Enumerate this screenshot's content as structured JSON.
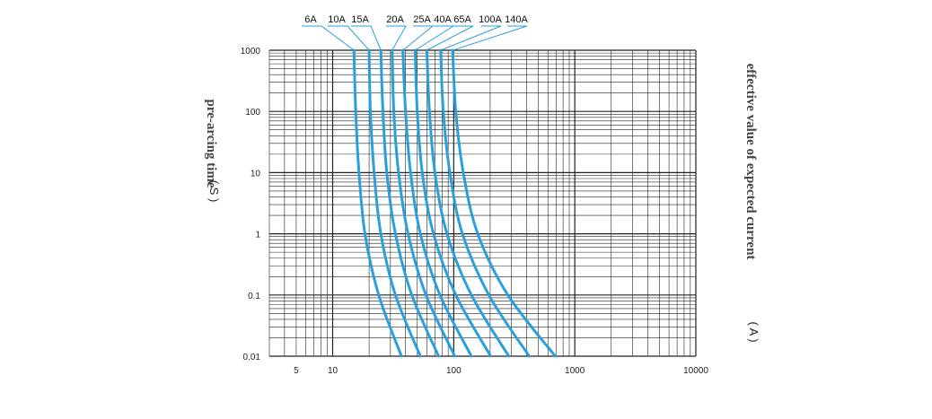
{
  "chart_data": {
    "type": "line",
    "title": "",
    "ylabel": "pre-arcing time",
    "ylabel_unit": "( S )",
    "xlabel": "effective value of expected current",
    "xlabel_unit": "( A )",
    "x_scale": "log",
    "y_scale": "log",
    "xlim": [
      3,
      10000
    ],
    "ylim": [
      0.01,
      1000
    ],
    "x_ticks": [
      "5",
      "10",
      "100",
      "1000",
      "10000"
    ],
    "y_ticks": [
      "1000",
      "100",
      "10",
      "1",
      "0.1",
      "0.01"
    ],
    "grid": true,
    "series": [
      {
        "name": "6A",
        "points": [
          [
            15,
            1000
          ],
          [
            15.5,
            100
          ],
          [
            16.5,
            10
          ],
          [
            18.5,
            1
          ],
          [
            24,
            0.1
          ],
          [
            37,
            0.01
          ]
        ]
      },
      {
        "name": "10A",
        "points": [
          [
            20,
            1000
          ],
          [
            20.5,
            100
          ],
          [
            22,
            10
          ],
          [
            25,
            1
          ],
          [
            33,
            0.1
          ],
          [
            53,
            0.01
          ]
        ]
      },
      {
        "name": "15A",
        "points": [
          [
            25,
            1000
          ],
          [
            26,
            100
          ],
          [
            28,
            10
          ],
          [
            33,
            1
          ],
          [
            45,
            0.1
          ],
          [
            75,
            0.01
          ]
        ]
      },
      {
        "name": "20A",
        "points": [
          [
            31,
            1000
          ],
          [
            32,
            100
          ],
          [
            35,
            10
          ],
          [
            42,
            1
          ],
          [
            59,
            0.1
          ],
          [
            102,
            0.01
          ]
        ]
      },
      {
        "name": "25A",
        "points": [
          [
            38,
            1000
          ],
          [
            40,
            100
          ],
          [
            44,
            10
          ],
          [
            53,
            1
          ],
          [
            77,
            0.1
          ],
          [
            140,
            0.01
          ]
        ]
      },
      {
        "name": "40A",
        "points": [
          [
            48,
            1000
          ],
          [
            50,
            100
          ],
          [
            55,
            10
          ],
          [
            68,
            1
          ],
          [
            104,
            0.1
          ],
          [
            202,
            0.01
          ]
        ]
      },
      {
        "name": "65A",
        "points": [
          [
            60,
            1000
          ],
          [
            63,
            100
          ],
          [
            70,
            10
          ],
          [
            88,
            1
          ],
          [
            140,
            0.1
          ],
          [
            285,
            0.01
          ]
        ]
      },
      {
        "name": "100A",
        "points": [
          [
            78,
            1000
          ],
          [
            82,
            100
          ],
          [
            93,
            10
          ],
          [
            118,
            1
          ],
          [
            195,
            0.1
          ],
          [
            420,
            0.01
          ]
        ]
      },
      {
        "name": "140A",
        "points": [
          [
            98,
            1000
          ],
          [
            104,
            100
          ],
          [
            120,
            10
          ],
          [
            158,
            1
          ],
          [
            280,
            0.1
          ],
          [
            690,
            0.01
          ]
        ]
      }
    ]
  }
}
